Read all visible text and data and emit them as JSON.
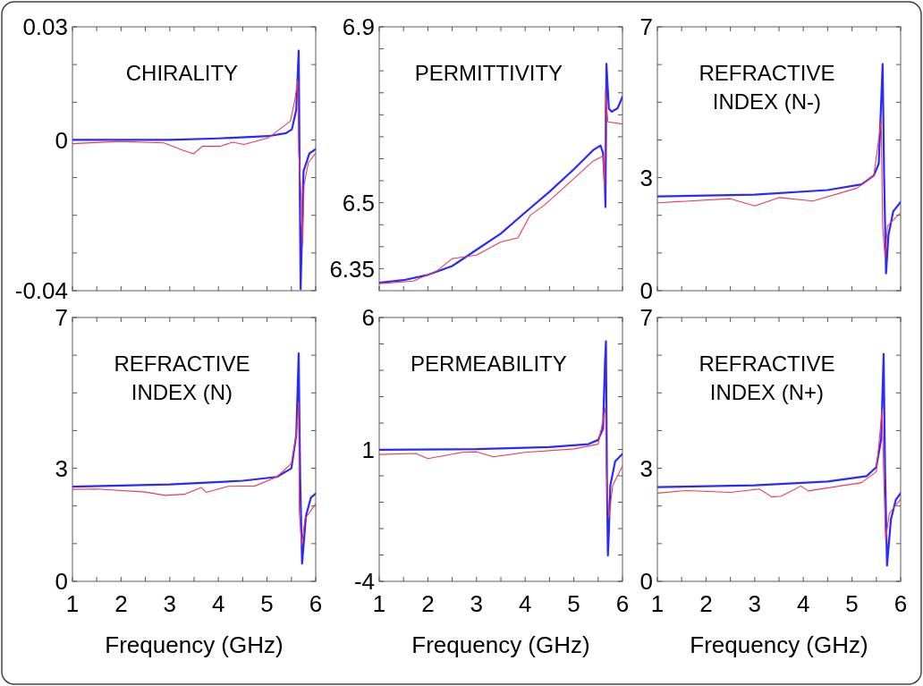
{
  "chart_data": [
    {
      "type": "line",
      "title": "CHIRALITY",
      "tick_labels": "y",
      "xlim": [
        1,
        6
      ],
      "xticks": [
        1,
        {
          "value": 1.5,
          "label": null
        },
        {
          "value": 2,
          "label": null
        },
        {
          "value": 2.5,
          "label": null
        },
        {
          "value": 3,
          "label": null
        },
        {
          "value": 3.5,
          "label": null
        },
        {
          "value": 4,
          "label": null
        },
        {
          "value": 4.5,
          "label": null
        },
        {
          "value": 5,
          "label": null
        },
        {
          "value": 5.5,
          "label": null
        },
        6
      ],
      "ylim": [
        -0.04,
        0.03
      ],
      "yticks": [
        0.03,
        {
          "value": 0.02,
          "label": null
        },
        {
          "value": 0.01,
          "label": null
        },
        0,
        {
          "value": -0.01,
          "label": null
        },
        {
          "value": -0.02,
          "label": null
        },
        {
          "value": -0.03,
          "label": null
        },
        -0.04
      ],
      "series": [
        {
          "color": "#2a2aff",
          "x": [
            1,
            3,
            4,
            5.02,
            5.39,
            5.51,
            5.6,
            5.65,
            5.69,
            5.75,
            5.87,
            6
          ],
          "values": [
            0,
            0,
            0.0004,
            0.001,
            0.0018,
            0.0028,
            0.008,
            0.0237,
            -0.0396,
            -0.0083,
            -0.0036,
            -0.0024
          ]
        },
        {
          "color": "#ee3a55",
          "x": [
            1,
            1.96,
            2.88,
            3.28,
            3.49,
            3.67,
            4.04,
            4.29,
            4.53,
            5.02,
            5.48,
            5.57,
            5.63,
            5.65,
            5.7,
            5.73,
            5.76,
            5.85,
            6
          ],
          "values": [
            -0.001,
            -0.0004,
            -0.0008,
            -0.0028,
            -0.0037,
            -0.0017,
            -0.0017,
            -0.0006,
            -0.0012,
            0.0005,
            0.005,
            0.0105,
            0.0157,
            -0.003,
            -0.015,
            -0.028,
            -0.012,
            -0.006,
            -0.0035
          ]
        }
      ]
    },
    {
      "type": "line",
      "title": "PERMITTIVITY",
      "tick_labels": "y",
      "xlim": [
        1,
        6
      ],
      "xticks": [
        1,
        {
          "value": 1.5,
          "label": null
        },
        {
          "value": 2,
          "label": null
        },
        {
          "value": 2.5,
          "label": null
        },
        {
          "value": 3,
          "label": null
        },
        {
          "value": 3.5,
          "label": null
        },
        {
          "value": 4,
          "label": null
        },
        {
          "value": 4.5,
          "label": null
        },
        {
          "value": 5,
          "label": null
        },
        {
          "value": 5.5,
          "label": null
        },
        6
      ],
      "ylim": [
        6.3,
        6.9
      ],
      "yticks": [
        6.35,
        {
          "value": 6.4,
          "label": null
        },
        {
          "value": 6.45,
          "label": null
        },
        6.5,
        {
          "value": 6.55,
          "label": null
        },
        {
          "value": 6.6,
          "label": null
        },
        {
          "value": 6.65,
          "label": null
        },
        {
          "value": 6.7,
          "label": null
        },
        {
          "value": 6.75,
          "label": null
        },
        {
          "value": 6.8,
          "label": null
        },
        {
          "value": 6.85,
          "label": null
        },
        6.9
      ],
      "series": [
        {
          "color": "#2a2aff",
          "x": [
            1,
            1.5,
            2,
            2.5,
            3,
            3.5,
            4,
            4.5,
            5,
            5.4,
            5.55,
            5.6,
            5.64,
            5.65,
            5.67,
            5.69,
            5.72,
            5.78,
            5.9,
            6
          ],
          "values": [
            6.318,
            6.324,
            6.336,
            6.356,
            6.393,
            6.43,
            6.478,
            6.525,
            6.576,
            6.62,
            6.63,
            6.613,
            6.532,
            6.49,
            6.816,
            6.775,
            6.714,
            6.707,
            6.715,
            6.741
          ]
        },
        {
          "color": "#ee3a55",
          "x": [
            1,
            1.7,
            2.2,
            2.5,
            3,
            3.5,
            3.85,
            4.1,
            4.4,
            4.9,
            5.4,
            5.6,
            5.63,
            5.65,
            5.7,
            6
          ],
          "values": [
            6.316,
            6.322,
            6.346,
            6.373,
            6.381,
            6.411,
            6.42,
            6.471,
            6.495,
            6.545,
            6.595,
            6.606,
            6.532,
            6.755,
            6.684,
            6.679
          ]
        }
      ]
    },
    {
      "type": "line",
      "title": "REFRACTIVE INDEX (N-)",
      "tick_labels": "y",
      "xlim": [
        1,
        6
      ],
      "xticks": [
        1,
        {
          "value": 1.5,
          "label": null
        },
        {
          "value": 2,
          "label": null
        },
        {
          "value": 2.5,
          "label": null
        },
        {
          "value": 3,
          "label": null
        },
        {
          "value": 3.5,
          "label": null
        },
        {
          "value": 4,
          "label": null
        },
        {
          "value": 4.5,
          "label": null
        },
        {
          "value": 5,
          "label": null
        },
        {
          "value": 5.5,
          "label": null
        },
        6
      ],
      "ylim": [
        0,
        7
      ],
      "yticks": [
        0,
        {
          "value": 1,
          "label": null
        },
        {
          "value": 2,
          "label": null
        },
        3,
        {
          "value": 4,
          "label": null
        },
        {
          "value": 5,
          "label": null
        },
        {
          "value": 6,
          "label": null
        },
        7
      ],
      "series": [
        {
          "color": "#2a2aff",
          "x": [
            1,
            3,
            4.5,
            5.2,
            5.45,
            5.55,
            5.63,
            5.66,
            5.7,
            5.75,
            5.85,
            6
          ],
          "values": [
            2.5,
            2.55,
            2.67,
            2.82,
            3.06,
            3.37,
            6.01,
            3.06,
            0.46,
            1.48,
            2.11,
            2.35
          ]
        },
        {
          "color": "#ee3a55",
          "x": [
            1,
            2.5,
            3,
            3.5,
            4.2,
            5.1,
            5.45,
            5.6,
            5.63,
            5.68,
            5.73,
            6
          ],
          "values": [
            2.33,
            2.44,
            2.25,
            2.47,
            2.38,
            2.72,
            3.06,
            4.52,
            1.72,
            0.85,
            1.72,
            2.07
          ]
        }
      ]
    },
    {
      "type": "line",
      "title": "REFRACTIVE INDEX (N)",
      "xlabel": "Frequency (GHz)",
      "xlim": [
        1,
        6
      ],
      "xticks": [
        1,
        {
          "value": 1.5,
          "label": null
        },
        2,
        {
          "value": 2.5,
          "label": null
        },
        3,
        {
          "value": 3.5,
          "label": null
        },
        4,
        {
          "value": 4.5,
          "label": null
        },
        5,
        {
          "value": 5.5,
          "label": null
        },
        6
      ],
      "ylim": [
        0,
        7
      ],
      "yticks": [
        0,
        {
          "value": 1,
          "label": null
        },
        {
          "value": 2,
          "label": null
        },
        3,
        {
          "value": 4,
          "label": null
        },
        {
          "value": 5,
          "label": null
        },
        {
          "value": 6,
          "label": null
        },
        7
      ],
      "series": [
        {
          "color": "#2a2aff",
          "x": [
            1,
            3,
            4.5,
            5.2,
            5.5,
            5.6,
            5.65,
            5.68,
            5.72,
            5.8,
            5.9,
            6
          ],
          "values": [
            2.51,
            2.57,
            2.67,
            2.77,
            3.0,
            3.88,
            6.05,
            2.77,
            0.47,
            1.74,
            2.22,
            2.33
          ]
        },
        {
          "color": "#ee3a55",
          "x": [
            1,
            1.5,
            2.5,
            2.9,
            3.3,
            3.65,
            3.75,
            4.2,
            4.75,
            5.2,
            5.5,
            5.6,
            5.65,
            5.66,
            5.71,
            5.78,
            6
          ],
          "values": [
            2.44,
            2.45,
            2.37,
            2.28,
            2.31,
            2.49,
            2.36,
            2.52,
            2.53,
            2.77,
            3.13,
            3.88,
            4.75,
            1.9,
            0.95,
            1.66,
            2.06
          ]
        }
      ]
    },
    {
      "type": "line",
      "title": "PERMEABILITY",
      "xlabel": "Frequency (GHz)",
      "xlim": [
        1,
        6
      ],
      "xticks": [
        1,
        {
          "value": 1.5,
          "label": null
        },
        2,
        {
          "value": 2.5,
          "label": null
        },
        3,
        {
          "value": 3.5,
          "label": null
        },
        4,
        {
          "value": 4.5,
          "label": null
        },
        5,
        {
          "value": 5.5,
          "label": null
        },
        6
      ],
      "ylim": [
        -4,
        6
      ],
      "yticks": [
        -4,
        {
          "value": -3,
          "label": null
        },
        {
          "value": -2,
          "label": null
        },
        {
          "value": -1,
          "label": null
        },
        {
          "value": 0,
          "label": null
        },
        1,
        {
          "value": 2,
          "label": null
        },
        {
          "value": 3,
          "label": null
        },
        {
          "value": 4,
          "label": null
        },
        {
          "value": 5,
          "label": null
        },
        6
      ],
      "series": [
        {
          "color": "#2a2aff",
          "x": [
            1,
            3,
            4.5,
            5.3,
            5.5,
            5.6,
            5.64,
            5.66,
            5.68,
            5.7,
            5.72,
            5.75,
            5.85,
            6
          ],
          "values": [
            0.99,
            1.01,
            1.09,
            1.2,
            1.36,
            1.79,
            4.28,
            5.1,
            -0.02,
            -3.02,
            -2.17,
            -0.36,
            0.55,
            0.83
          ]
        },
        {
          "color": "#ee3a55",
          "x": [
            1,
            1.75,
            2,
            2.7,
            3,
            3.35,
            4,
            5,
            5.5,
            5.65,
            5.67,
            5.72,
            5.8,
            6
          ],
          "values": [
            0.81,
            0.85,
            0.65,
            0.89,
            0.91,
            0.72,
            0.89,
            1.02,
            1.2,
            2.58,
            0.09,
            -1.6,
            -0.36,
            0.37
          ]
        }
      ]
    },
    {
      "type": "line",
      "title": "REFRACTIVE INDEX (N+)",
      "xlabel": "Frequency (GHz)",
      "xlim": [
        1,
        6
      ],
      "xticks": [
        1,
        {
          "value": 1.5,
          "label": null
        },
        2,
        {
          "value": 2.5,
          "label": null
        },
        3,
        {
          "value": 3.5,
          "label": null
        },
        4,
        {
          "value": 4.5,
          "label": null
        },
        5,
        {
          "value": 5.5,
          "label": null
        },
        6
      ],
      "ylim": [
        0,
        7
      ],
      "yticks": [
        0,
        {
          "value": 1,
          "label": null
        },
        {
          "value": 2,
          "label": null
        },
        3,
        {
          "value": 4,
          "label": null
        },
        {
          "value": 5,
          "label": null
        },
        {
          "value": 6,
          "label": null
        },
        7
      ],
      "series": [
        {
          "color": "#2a2aff",
          "x": [
            1,
            3,
            4.5,
            5.3,
            5.5,
            5.6,
            5.65,
            5.68,
            5.72,
            5.8,
            5.9,
            6
          ],
          "values": [
            2.5,
            2.55,
            2.65,
            2.79,
            3.03,
            3.78,
            6.03,
            2.91,
            0.42,
            1.64,
            2.16,
            2.34
          ]
        },
        {
          "color": "#ee3a55",
          "x": [
            1,
            1.6,
            2.5,
            3.1,
            3.35,
            3.55,
            3.95,
            4.1,
            5.2,
            5.5,
            5.62,
            5.65,
            5.69,
            5.77,
            6
          ],
          "values": [
            2.34,
            2.41,
            2.36,
            2.45,
            2.24,
            2.26,
            2.53,
            2.4,
            2.62,
            2.91,
            4.57,
            2.91,
            1.1,
            1.81,
            2.18
          ]
        }
      ]
    }
  ]
}
